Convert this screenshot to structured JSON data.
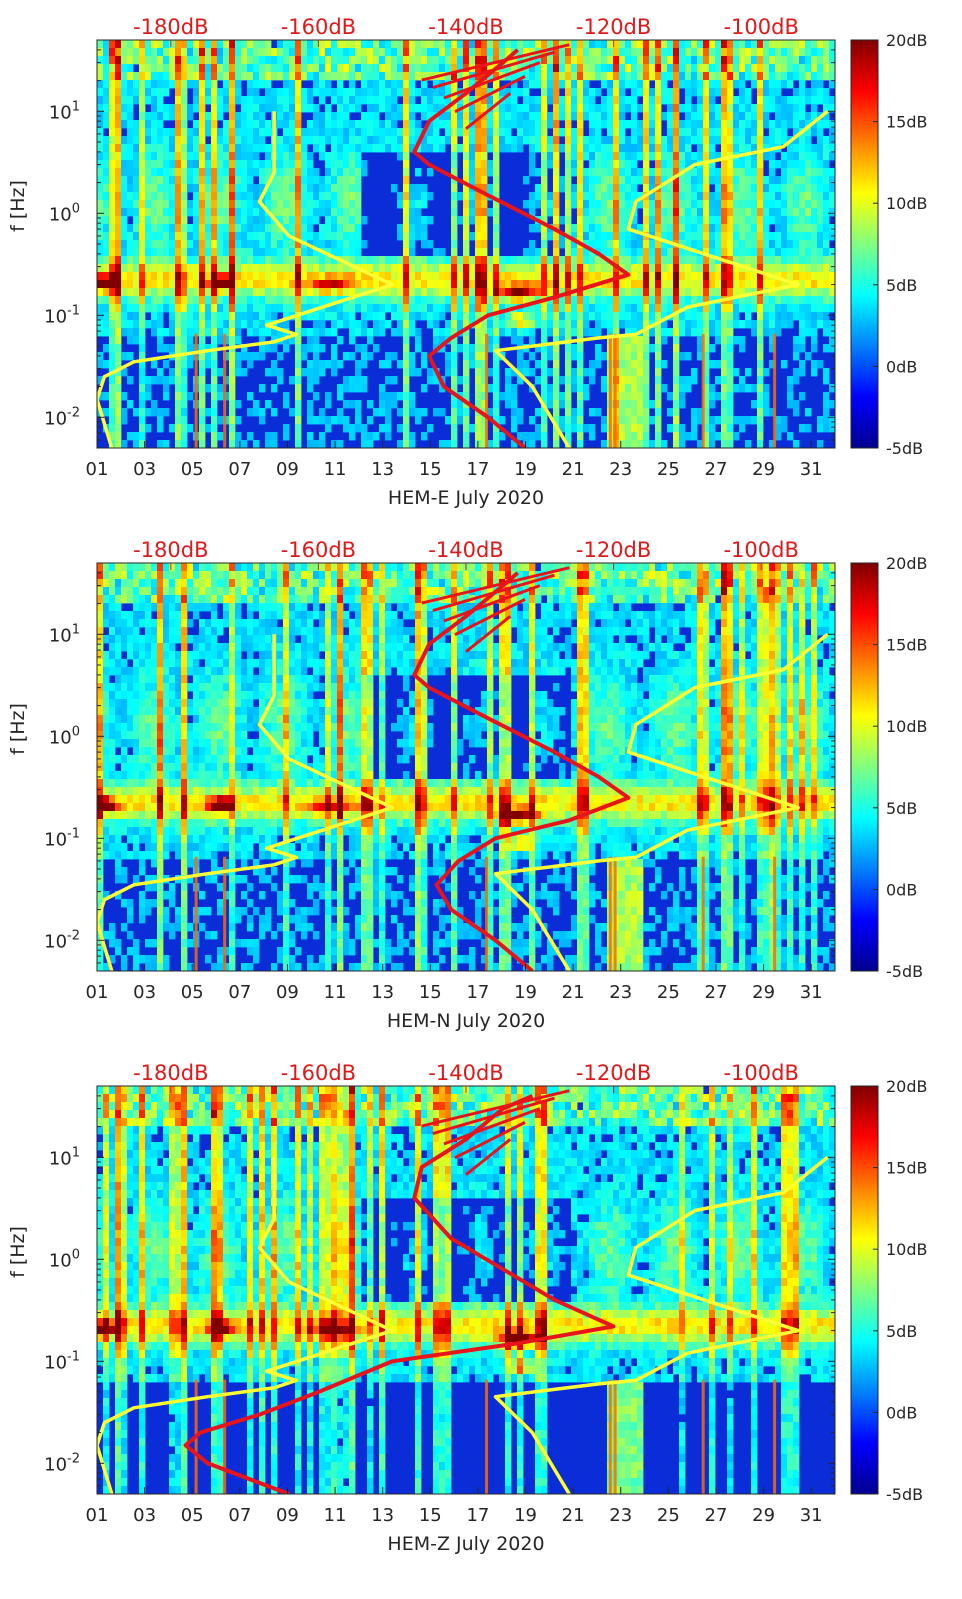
{
  "colors": {
    "power_curve": "#e8141c",
    "noise_model": "#ffff33",
    "top_axis_text": "#e01818",
    "colormap": [
      "#00008f",
      "#0000ff",
      "#0080ff",
      "#00ffff",
      "#80ff80",
      "#ffff00",
      "#ff8000",
      "#ff0000",
      "#800000"
    ]
  },
  "chart_data": [
    {
      "type": "heatmap",
      "title": "",
      "xlabel": "HEM-E July 2020",
      "ylabel": "f [Hz]",
      "x_unit": "day of July 2020",
      "xlim": [
        1,
        32
      ],
      "ylim": [
        0.005,
        50
      ],
      "y_scale": "log",
      "x_ticks": [
        "01",
        "03",
        "05",
        "07",
        "09",
        "11",
        "13",
        "15",
        "17",
        "19",
        "21",
        "23",
        "25",
        "27",
        "29",
        "31"
      ],
      "y_ticks": [
        "10^-2",
        "10^-1",
        "10^0",
        "10^1"
      ],
      "top_axis_ticks": [
        "-180dB",
        "-160dB",
        "-140dB",
        "-120dB",
        "-100dB"
      ],
      "top_axis_range_dB": [
        -190,
        -90
      ],
      "colorbar": {
        "ticks": [
          "20dB",
          "15dB",
          "10dB",
          "5dB",
          "0dB",
          "-5dB"
        ],
        "range_dB": [
          -5,
          20
        ]
      },
      "grid": false,
      "series": [
        {
          "color": "red",
          "axis": "top",
          "points": [
            [
              -132,
              0.005
            ],
            [
              -137,
              0.01
            ],
            [
              -143,
              0.02
            ],
            [
              -145,
              0.04
            ],
            [
              -142,
              0.06
            ],
            [
              -137,
              0.1
            ],
            [
              -128,
              0.15
            ],
            [
              -118,
              0.25
            ],
            [
              -122,
              0.4
            ],
            [
              -128,
              0.7
            ],
            [
              -137,
              1.5
            ],
            [
              -145,
              3
            ],
            [
              -147,
              4
            ],
            [
              -145,
              8
            ],
            [
              -140,
              15
            ],
            [
              -135,
              30
            ],
            [
              -133,
              40
            ]
          ]
        },
        {
          "color": "yellow",
          "axis": "top",
          "points": [
            [
              -188,
              0.005
            ],
            [
              -190,
              0.015
            ],
            [
              -189,
              0.025
            ],
            [
              -185,
              0.035
            ],
            [
              -175,
              0.045
            ],
            [
              -166,
              0.055
            ],
            [
              -163,
              0.065
            ],
            [
              -167,
              0.08
            ],
            [
              -150,
              0.2
            ],
            [
              -164,
              0.6
            ],
            [
              -168,
              1.3
            ],
            [
              -166,
              2.5
            ],
            [
              -166,
              10
            ]
          ]
        },
        {
          "color": "yellow",
          "axis": "top",
          "points": [
            [
              -126,
              0.005
            ],
            [
              -131,
              0.02
            ],
            [
              -136,
              0.045
            ],
            [
              -122,
              0.06
            ],
            [
              -117,
              0.065
            ],
            [
              -110,
              0.12
            ],
            [
              -95,
              0.2
            ],
            [
              -118,
              0.7
            ],
            [
              -117,
              1.3
            ],
            [
              -109,
              3
            ],
            [
              -97,
              4.5
            ],
            [
              -91,
              10
            ]
          ]
        }
      ]
    },
    {
      "type": "heatmap",
      "title": "",
      "xlabel": "HEM-N July 2020",
      "ylabel": "f [Hz]",
      "x_unit": "day of July 2020",
      "xlim": [
        1,
        32
      ],
      "ylim": [
        0.005,
        50
      ],
      "y_scale": "log",
      "x_ticks": [
        "01",
        "03",
        "05",
        "07",
        "09",
        "11",
        "13",
        "15",
        "17",
        "19",
        "21",
        "23",
        "25",
        "27",
        "29",
        "31"
      ],
      "y_ticks": [
        "10^-2",
        "10^-1",
        "10^0",
        "10^1"
      ],
      "top_axis_ticks": [
        "-180dB",
        "-160dB",
        "-140dB",
        "-120dB",
        "-100dB"
      ],
      "top_axis_range_dB": [
        -190,
        -90
      ],
      "colorbar": {
        "ticks": [
          "20dB",
          "15dB",
          "10dB",
          "5dB",
          "0dB",
          "-5dB"
        ],
        "range_dB": [
          -5,
          20
        ]
      },
      "grid": false,
      "series": [
        {
          "color": "red",
          "axis": "top",
          "points": [
            [
              -131,
              0.005
            ],
            [
              -136,
              0.01
            ],
            [
              -142,
              0.02
            ],
            [
              -144,
              0.035
            ],
            [
              -141,
              0.06
            ],
            [
              -136,
              0.1
            ],
            [
              -126,
              0.15
            ],
            [
              -118,
              0.25
            ],
            [
              -122,
              0.4
            ],
            [
              -128,
              0.7
            ],
            [
              -137,
              1.5
            ],
            [
              -145,
              3
            ],
            [
              -147,
              4
            ],
            [
              -145,
              8
            ],
            [
              -140,
              15
            ],
            [
              -135,
              30
            ],
            [
              -133,
              40
            ]
          ]
        },
        {
          "color": "yellow",
          "axis": "top",
          "points": [
            [
              -188,
              0.005
            ],
            [
              -190,
              0.015
            ],
            [
              -189,
              0.025
            ],
            [
              -185,
              0.035
            ],
            [
              -175,
              0.045
            ],
            [
              -166,
              0.055
            ],
            [
              -163,
              0.065
            ],
            [
              -167,
              0.08
            ],
            [
              -150,
              0.2
            ],
            [
              -164,
              0.6
            ],
            [
              -168,
              1.3
            ],
            [
              -166,
              2.5
            ],
            [
              -166,
              10
            ]
          ]
        },
        {
          "color": "yellow",
          "axis": "top",
          "points": [
            [
              -126,
              0.005
            ],
            [
              -131,
              0.02
            ],
            [
              -136,
              0.045
            ],
            [
              -122,
              0.06
            ],
            [
              -117,
              0.065
            ],
            [
              -110,
              0.12
            ],
            [
              -95,
              0.2
            ],
            [
              -118,
              0.7
            ],
            [
              -117,
              1.3
            ],
            [
              -109,
              3
            ],
            [
              -97,
              4.5
            ],
            [
              -91,
              10
            ]
          ]
        }
      ]
    },
    {
      "type": "heatmap",
      "title": "",
      "xlabel": "HEM-Z July 2020",
      "ylabel": "f [Hz]",
      "x_unit": "day of July 2020",
      "xlim": [
        1,
        32
      ],
      "ylim": [
        0.005,
        50
      ],
      "y_scale": "log",
      "x_ticks": [
        "01",
        "03",
        "05",
        "07",
        "09",
        "11",
        "13",
        "15",
        "17",
        "19",
        "21",
        "23",
        "25",
        "27",
        "29",
        "31"
      ],
      "y_ticks": [
        "10^-2",
        "10^-1",
        "10^0",
        "10^1"
      ],
      "top_axis_ticks": [
        "-180dB",
        "-160dB",
        "-140dB",
        "-120dB",
        "-100dB"
      ],
      "top_axis_range_dB": [
        -190,
        -90
      ],
      "colorbar": {
        "ticks": [
          "20dB",
          "15dB",
          "10dB",
          "5dB",
          "0dB",
          "-5dB"
        ],
        "range_dB": [
          -5,
          20
        ]
      },
      "grid": false,
      "series": [
        {
          "color": "red",
          "axis": "top",
          "points": [
            [
              -164,
              0.005
            ],
            [
              -175,
              0.01
            ],
            [
              -178,
              0.015
            ],
            [
              -176,
              0.02
            ],
            [
              -168,
              0.03
            ],
            [
              -160,
              0.05
            ],
            [
              -150,
              0.1
            ],
            [
              -133,
              0.15
            ],
            [
              -120,
              0.22
            ],
            [
              -128,
              0.4
            ],
            [
              -135,
              0.8
            ],
            [
              -142,
              1.6
            ],
            [
              -147,
              4
            ],
            [
              -146,
              8
            ],
            [
              -140,
              15
            ],
            [
              -135,
              30
            ],
            [
              -131,
              40
            ]
          ]
        },
        {
          "color": "yellow",
          "axis": "top",
          "points": [
            [
              -188,
              0.005
            ],
            [
              -190,
              0.015
            ],
            [
              -189,
              0.025
            ],
            [
              -185,
              0.035
            ],
            [
              -175,
              0.045
            ],
            [
              -166,
              0.055
            ],
            [
              -163,
              0.065
            ],
            [
              -167,
              0.08
            ],
            [
              -150,
              0.2
            ],
            [
              -164,
              0.6
            ],
            [
              -168,
              1.3
            ],
            [
              -166,
              2.5
            ],
            [
              -166,
              10
            ]
          ]
        },
        {
          "color": "yellow",
          "axis": "top",
          "points": [
            [
              -126,
              0.005
            ],
            [
              -131,
              0.02
            ],
            [
              -136,
              0.045
            ],
            [
              -122,
              0.06
            ],
            [
              -117,
              0.065
            ],
            [
              -110,
              0.12
            ],
            [
              -95,
              0.2
            ],
            [
              -118,
              0.7
            ],
            [
              -117,
              1.3
            ],
            [
              -109,
              3
            ],
            [
              -97,
              4.5
            ],
            [
              -91,
              10
            ]
          ]
        }
      ]
    }
  ]
}
